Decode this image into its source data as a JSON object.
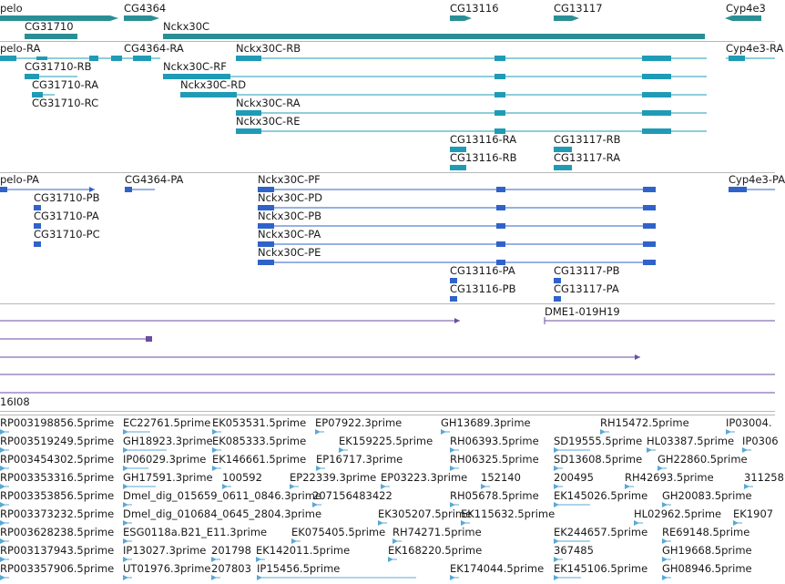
{
  "colors": {
    "gene": "#2a8f95",
    "transcript": "#1f9bb5",
    "cds": "#2f63c9",
    "clone": "#6b4ea0",
    "est": "#5aa8d6",
    "divider": "#b8b8b8"
  },
  "genes": {
    "pelo": "pelo",
    "cg4364": "CG4364",
    "cg13116": "CG13116",
    "cg13117": "CG13117",
    "cyp4e3": "Cyp4e3",
    "cg31710": "CG31710",
    "nckx30c": "Nckx30C"
  },
  "transcripts": {
    "pelo_ra": "pelo-RA",
    "cg4364_ra": "CG4364-RA",
    "nckx30c_rb": "Nckx30C-RB",
    "cyp4e3_ra": "Cyp4e3-RA",
    "cg31710_rb": "CG31710-RB",
    "nckx30c_rf": "Nckx30C-RF",
    "cg31710_ra": "CG31710-RA",
    "nckx30c_rd": "Nckx30C-RD",
    "cg31710_rc": "CG31710-RC",
    "nckx30c_ra": "Nckx30C-RA",
    "nckx30c_re": "Nckx30C-RE",
    "cg13116_ra": "CG13116-RA",
    "cg13117_rb": "CG13117-RB",
    "cg13116_rb": "CG13116-RB",
    "cg13117_ra": "CG13117-RA"
  },
  "proteins": {
    "pelo_pa": "pelo-PA",
    "cg4364_pa": "CG4364-PA",
    "nckx30c_pf": "Nckx30C-PF",
    "cyp4e3_pa": "Cyp4e3-PA",
    "cg31710_pb": "CG31710-PB",
    "nckx30c_pd": "Nckx30C-PD",
    "cg31710_pa": "CG31710-PA",
    "nckx30c_pb": "Nckx30C-PB",
    "cg31710_pc": "CG31710-PC",
    "nckx30c_pa": "Nckx30C-PA",
    "nckx30c_pe": "Nckx30C-PE",
    "cg13116_pa": "CG13116-PA",
    "cg13117_pb": "CG13117-PB",
    "cg13116_pb": "CG13116-PB",
    "cg13117_pa": "CG13117-PA"
  },
  "clones": {
    "dme1": "DME1-019H19",
    "partial": "16I08"
  },
  "est_rows": [
    [
      "RP003198856.5prime",
      "EC22761.5prime",
      "EK053531.5prime",
      "EP07922.3prime",
      "GH13689.3prime",
      "RH15472.5prime",
      "IP03004."
    ],
    [
      "RP003519249.5prime",
      "GH18923.3prime",
      "EK085333.5prime",
      "EK159225.5prime",
      "RH06393.5prime",
      "SD19555.5prime",
      "HL03387.5prime",
      "IP0306"
    ],
    [
      "RP003454302.5prime",
      "IP06029.3prime",
      "EK146661.5prime",
      "EP16717.3prime",
      "RH06325.5prime",
      "SD13608.5prime",
      "GH22860.5prime"
    ],
    [
      "RP003353316.5prime",
      "GH17591.3prime",
      "100592",
      "EP22339.3prime",
      "EP03223.3prime",
      "152140",
      "200495",
      "RH42693.5prime",
      "311258"
    ],
    [
      "RP003353856.5prime",
      "Dmel_dig_015659_0611_0846.3prime",
      "207156483422",
      "RH05678.5prime",
      "EK145026.5prime",
      "GH20083.5prime"
    ],
    [
      "RP003373232.5prime",
      "Dmel_dig_010684_0645_2804.3prime",
      "EK305207.5prime",
      "EK115632.5prime",
      "HL02962.5prime",
      "EK1907"
    ],
    [
      "RP003628238.5prime",
      "ESG0118a.B21_E11.3prime",
      "EK075405.5prime",
      "RH74271.5prime",
      "EK244657.5prime",
      "RE69148.5prime"
    ],
    [
      "RP003137943.5prime",
      "IP13027.3prime",
      "201798",
      "EK142011.5prime",
      "EK168220.5prime",
      "367485",
      "GH19668.5prime"
    ],
    [
      "RP003357906.5prime",
      "UT01976.3prime",
      "207803",
      "IP15456.5prime",
      "EK174044.5prime",
      "EK145106.5prime",
      "GH08946.5prime"
    ]
  ]
}
